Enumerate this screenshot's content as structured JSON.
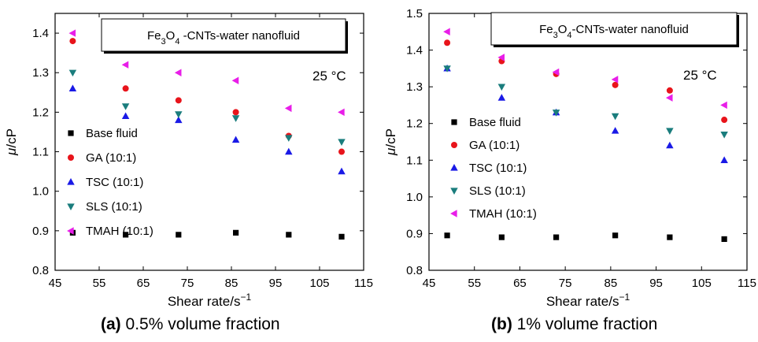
{
  "chart_data": [
    {
      "type": "scatter",
      "panel_label": "(a)",
      "caption": "0.5% volume fraction",
      "title_parts": [
        "Fe",
        "3",
        "O",
        "4",
        " -CNTs-water nanofluid"
      ],
      "annotation": "25 °C",
      "xlabel": "Shear rate/s",
      "xlabel_sup": "−1",
      "ylabel_mu": "μ",
      "ylabel_rest": "/cP",
      "xlim": [
        45,
        115
      ],
      "ylim": [
        0.8,
        1.45
      ],
      "xticks": [
        45,
        55,
        65,
        75,
        85,
        95,
        105,
        115
      ],
      "yticks": [
        "0.8",
        "0.9",
        "1.0",
        "1.1",
        "1.2",
        "1.3",
        "1.4"
      ],
      "ytick_values": [
        0.8,
        0.9,
        1.0,
        1.1,
        1.2,
        1.3,
        1.4
      ],
      "x": [
        49,
        61,
        73,
        86,
        98,
        110
      ],
      "legend_position": "left",
      "series": [
        {
          "name": "Base fluid",
          "marker": "square",
          "color": "#000000",
          "values": [
            0.895,
            0.89,
            0.89,
            0.895,
            0.89,
            0.885
          ]
        },
        {
          "name": "GA (10:1)",
          "marker": "circle",
          "color": "#e8141b",
          "values": [
            1.38,
            1.26,
            1.23,
            1.2,
            1.14,
            1.1
          ]
        },
        {
          "name": "TSC (10:1)",
          "marker": "triangle-up",
          "color": "#1a1ae6",
          "values": [
            1.26,
            1.19,
            1.18,
            1.13,
            1.1,
            1.05
          ]
        },
        {
          "name": "SLS (10:1)",
          "marker": "triangle-down",
          "color": "#1a7d7d",
          "values": [
            1.3,
            1.215,
            1.195,
            1.185,
            1.135,
            1.125
          ]
        },
        {
          "name": "TMAH (10:1)",
          "marker": "triangle-left",
          "color": "#e81ee8",
          "values": [
            1.4,
            1.32,
            1.3,
            1.28,
            1.21,
            1.2
          ]
        }
      ]
    },
    {
      "type": "scatter",
      "panel_label": "(b)",
      "caption": "1% volume fraction",
      "title_parts": [
        "Fe",
        "3",
        "O",
        "4",
        "-CNTs-water nanofluid"
      ],
      "annotation": "25 °C",
      "xlabel": "Shear rate/s",
      "xlabel_sup": "−1",
      "ylabel_mu": "μ",
      "ylabel_rest": "/cP",
      "xlim": [
        45,
        115
      ],
      "ylim": [
        0.8,
        1.5
      ],
      "xticks": [
        45,
        55,
        65,
        75,
        85,
        95,
        105,
        115
      ],
      "yticks": [
        "0.8",
        "0.9",
        "1.0",
        "1.1",
        "1.2",
        "1.3",
        "1.4",
        "1.5"
      ],
      "ytick_values": [
        0.8,
        0.9,
        1.0,
        1.1,
        1.2,
        1.3,
        1.4,
        1.5
      ],
      "x": [
        49,
        61,
        73,
        86,
        98,
        110
      ],
      "legend_position": "left",
      "series": [
        {
          "name": "Base fluid",
          "marker": "square",
          "color": "#000000",
          "values": [
            0.895,
            0.89,
            0.89,
            0.895,
            0.89,
            0.885
          ]
        },
        {
          "name": "GA (10:1)",
          "marker": "circle",
          "color": "#e8141b",
          "values": [
            1.42,
            1.37,
            1.335,
            1.305,
            1.29,
            1.21
          ]
        },
        {
          "name": "TSC (10:1)",
          "marker": "triangle-up",
          "color": "#1a1ae6",
          "values": [
            1.35,
            1.27,
            1.23,
            1.18,
            1.14,
            1.1
          ]
        },
        {
          "name": "SLS (10:1)",
          "marker": "triangle-down",
          "color": "#1a7d7d",
          "values": [
            1.35,
            1.3,
            1.23,
            1.22,
            1.18,
            1.17
          ]
        },
        {
          "name": "TMAH (10:1)",
          "marker": "triangle-left",
          "color": "#e81ee8",
          "values": [
            1.45,
            1.38,
            1.34,
            1.32,
            1.27,
            1.25
          ]
        }
      ]
    }
  ]
}
